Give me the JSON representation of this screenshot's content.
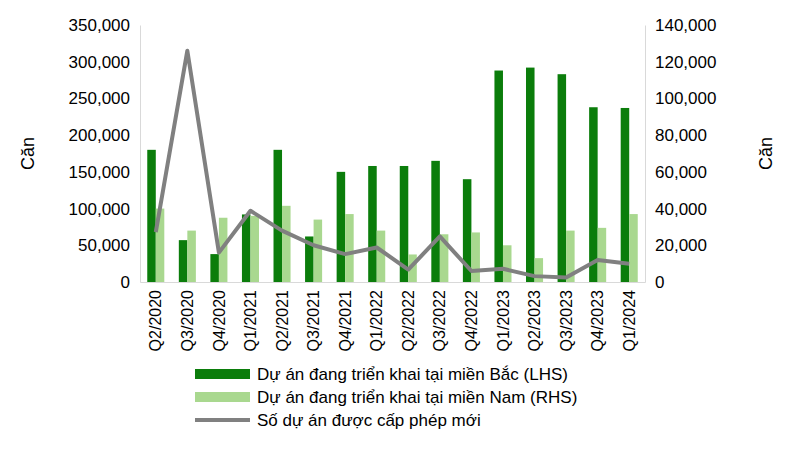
{
  "chart_data": {
    "type": "bar",
    "y_label": "Căn",
    "y2_label": "Căn",
    "categories": [
      "Q2/2020",
      "Q3/2020",
      "Q4/2020",
      "Q1/2021",
      "Q2/2021",
      "Q3/2021",
      "Q4/2021",
      "Q1/2022",
      "Q2/2022",
      "Q3/2022",
      "Q4/2022",
      "Q1/2023",
      "Q2/2023",
      "Q3/2023",
      "Q4/2023",
      "Q1/2024"
    ],
    "series": [
      {
        "name": "Dự án đang triển khai tại miền Bắc (LHS)",
        "type": "bar",
        "color": "#0b7d0b",
        "axis": "y",
        "values": [
          180000,
          57000,
          38000,
          92000,
          180000,
          62000,
          150000,
          158000,
          158000,
          165000,
          140000,
          288000,
          292000,
          283000,
          238000,
          237000
        ]
      },
      {
        "name": "Dự án đang triển khai tại miền Nam (RHS)",
        "type": "bar",
        "color": "#a9d88f",
        "axis": "y2",
        "values": [
          40000,
          28000,
          35000,
          36000,
          41500,
          34000,
          37000,
          28000,
          15000,
          26000,
          27000,
          20000,
          13000,
          28000,
          29500,
          37000
        ]
      },
      {
        "name": "Số dự án được cấp phép mới",
        "type": "line",
        "color": "#808080",
        "axis": "y",
        "values": [
          68000,
          315000,
          40000,
          97000,
          70000,
          50000,
          38000,
          47000,
          17000,
          62000,
          15000,
          18000,
          8000,
          6000,
          30000,
          25000
        ]
      }
    ],
    "ylim": [
      0,
      350000
    ],
    "yticks": [
      0,
      {
        "value": 50000,
        "label": "50,000"
      },
      {
        "value": 100000,
        "label": "100,000"
      },
      {
        "value": 150000,
        "label": "150,000"
      },
      {
        "value": 200000,
        "label": "200,000"
      },
      {
        "value": 250000,
        "label": "250,000"
      },
      {
        "value": 300000,
        "label": "300,000"
      },
      {
        "value": 350000,
        "label": "350,000"
      }
    ],
    "y2lim": [
      0,
      140000
    ],
    "y2ticks": [
      0,
      {
        "value": 20000,
        "label": "20,000"
      },
      {
        "value": 40000,
        "label": "40,000"
      },
      {
        "value": 60000,
        "label": "60,000"
      },
      {
        "value": 80000,
        "label": "80,000"
      },
      {
        "value": 100000,
        "label": "100,000"
      },
      {
        "value": 120000,
        "label": "120,000"
      },
      {
        "value": 140000,
        "label": "140,000"
      }
    ],
    "grid": false,
    "legend": "bottom"
  }
}
